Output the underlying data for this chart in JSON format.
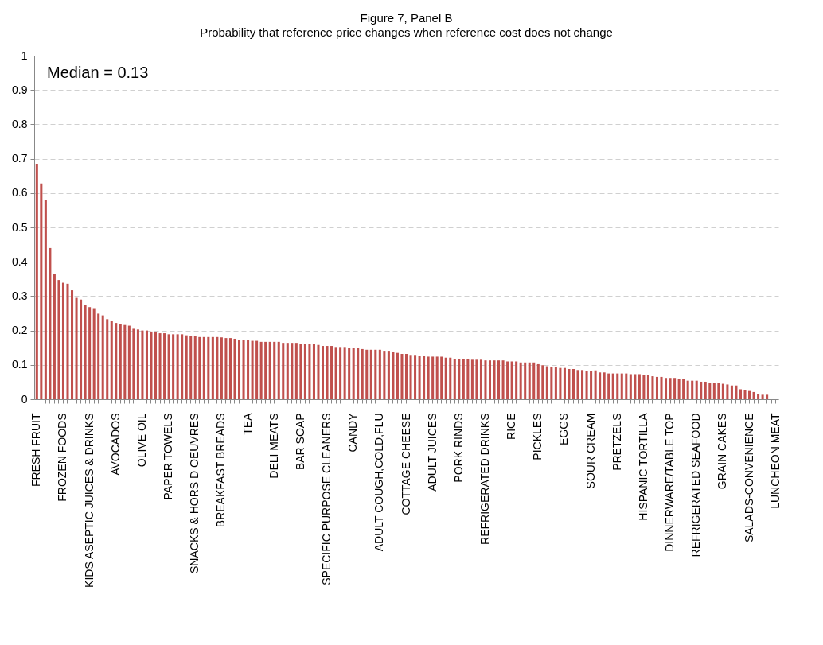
{
  "chart_data": {
    "type": "bar",
    "title": "Figure 7,  Panel B",
    "subtitle": "Probability that reference price changes when reference cost does not change",
    "categories": [
      "FRESH FRUIT",
      null,
      null,
      null,
      null,
      null,
      "FROZEN FOODS",
      null,
      null,
      null,
      null,
      null,
      "KIDS ASEPTIC JUICES & DRINKS",
      null,
      null,
      null,
      null,
      null,
      "AVOCADOS",
      null,
      null,
      null,
      null,
      null,
      "OLIVE OIL",
      null,
      null,
      null,
      null,
      null,
      "PAPER TOWELS",
      null,
      null,
      null,
      null,
      null,
      "SNACKS & HORS D OEUVRES",
      null,
      null,
      null,
      null,
      null,
      "BREAKFAST BREADS",
      null,
      null,
      null,
      null,
      null,
      "TEA",
      null,
      null,
      null,
      null,
      null,
      "DELI MEATS",
      null,
      null,
      null,
      null,
      null,
      "BAR SOAP",
      null,
      null,
      null,
      null,
      null,
      "SPECIFIC PURPOSE CLEANERS",
      null,
      null,
      null,
      null,
      null,
      "CANDY",
      null,
      null,
      null,
      null,
      null,
      "ADULT COUGH,COLD,FLU",
      null,
      null,
      null,
      null,
      null,
      "COTTAGE CHEESE",
      null,
      null,
      null,
      null,
      null,
      "ADULT JUICES",
      null,
      null,
      null,
      null,
      null,
      "PORK RINDS",
      null,
      null,
      null,
      null,
      null,
      "REFRIGERATED DRINKS",
      null,
      null,
      null,
      null,
      null,
      "RICE",
      null,
      null,
      null,
      null,
      null,
      "PICKLES",
      null,
      null,
      null,
      null,
      null,
      "EGGS",
      null,
      null,
      null,
      null,
      null,
      "SOUR CREAM",
      null,
      null,
      null,
      null,
      null,
      "PRETZELS",
      null,
      null,
      null,
      null,
      null,
      "HISPANIC TORTILLA",
      null,
      null,
      null,
      null,
      null,
      "DINNERWARE/TABLE TOP",
      null,
      null,
      null,
      null,
      null,
      "REFRIGERATED SEAFOOD",
      null,
      null,
      null,
      null,
      null,
      "GRAIN CAKES",
      null,
      null,
      null,
      null,
      null,
      "SALADS-CONVENIENCE",
      null,
      null,
      null,
      null,
      null,
      "LUNCHEON MEAT"
    ],
    "values": [
      0.685,
      0.628,
      0.579,
      0.44,
      0.364,
      0.347,
      0.339,
      0.336,
      0.317,
      0.295,
      0.29,
      0.274,
      0.268,
      0.265,
      0.249,
      0.244,
      0.233,
      0.227,
      0.222,
      0.219,
      0.216,
      0.214,
      0.205,
      0.203,
      0.2,
      0.2,
      0.197,
      0.195,
      0.192,
      0.192,
      0.189,
      0.189,
      0.189,
      0.189,
      0.186,
      0.184,
      0.184,
      0.181,
      0.181,
      0.181,
      0.181,
      0.181,
      0.18,
      0.178,
      0.178,
      0.176,
      0.173,
      0.173,
      0.173,
      0.17,
      0.17,
      0.167,
      0.167,
      0.167,
      0.167,
      0.167,
      0.164,
      0.164,
      0.164,
      0.164,
      0.161,
      0.161,
      0.161,
      0.161,
      0.158,
      0.155,
      0.155,
      0.155,
      0.152,
      0.152,
      0.152,
      0.149,
      0.149,
      0.149,
      0.146,
      0.144,
      0.144,
      0.144,
      0.144,
      0.141,
      0.141,
      0.138,
      0.135,
      0.132,
      0.132,
      0.129,
      0.129,
      0.126,
      0.126,
      0.124,
      0.124,
      0.124,
      0.124,
      0.121,
      0.121,
      0.118,
      0.118,
      0.118,
      0.118,
      0.115,
      0.115,
      0.115,
      0.113,
      0.113,
      0.113,
      0.113,
      0.113,
      0.11,
      0.11,
      0.11,
      0.107,
      0.107,
      0.107,
      0.107,
      0.102,
      0.099,
      0.096,
      0.094,
      0.094,
      0.091,
      0.091,
      0.088,
      0.088,
      0.085,
      0.085,
      0.083,
      0.083,
      0.084,
      0.078,
      0.078,
      0.075,
      0.075,
      0.075,
      0.075,
      0.075,
      0.073,
      0.073,
      0.073,
      0.07,
      0.07,
      0.067,
      0.065,
      0.065,
      0.062,
      0.062,
      0.062,
      0.059,
      0.059,
      0.054,
      0.054,
      0.054,
      0.051,
      0.051,
      0.048,
      0.048,
      0.048,
      0.045,
      0.043,
      0.04,
      0.04,
      0.029,
      0.026,
      0.024,
      0.021,
      0.015,
      0.013,
      0.013,
      0,
      0
    ],
    "color": "#c0504d",
    "ylim": [
      0,
      1
    ],
    "yticks": [
      0,
      0.1,
      0.2,
      0.3,
      0.4,
      0.5,
      0.6,
      0.7,
      0.8,
      0.9,
      1
    ],
    "grid": "y",
    "annotations": [
      "Median = 0.13"
    ]
  }
}
